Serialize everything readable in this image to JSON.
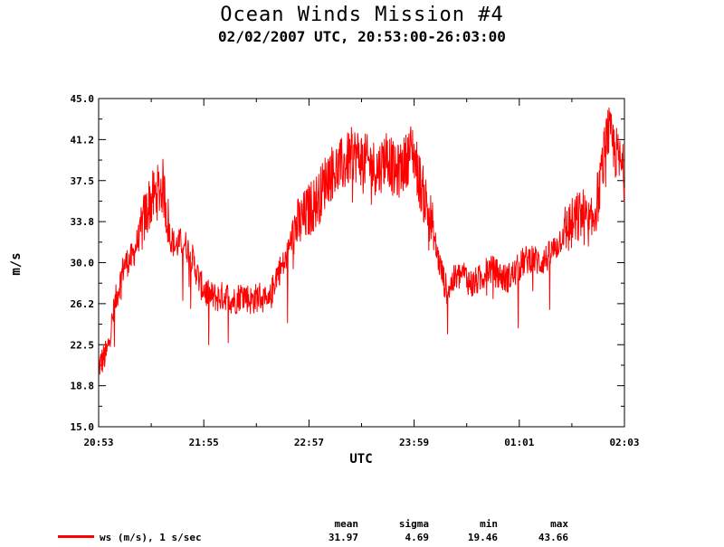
{
  "chart_data": {
    "type": "line",
    "title": "Ocean Winds Mission #4",
    "subtitle": "02/02/2007  UTC, 20:53:00-26:03:00",
    "xlabel": "UTC",
    "ylabel": "m/s",
    "ylim": [
      15.0,
      45.0
    ],
    "y_ticks": [
      "15.0",
      "18.8",
      "22.5",
      "26.2",
      "30.0",
      "33.8",
      "37.5",
      "41.2",
      "45.0"
    ],
    "x_ticks": [
      "20:53",
      "21:55",
      "22:57",
      "23:59",
      "01:01",
      "02:03"
    ],
    "grid": false,
    "series": [
      {
        "name": "ws (m/s), 1 s/sec",
        "color": "#ff0000",
        "x_minutes_after_2053": [
          0,
          5,
          10,
          15,
          20,
          25,
          30,
          35,
          38,
          42,
          45,
          50,
          55,
          60,
          65,
          70,
          75,
          80,
          85,
          90,
          95,
          100,
          105,
          110,
          115,
          120,
          125,
          130,
          135,
          140,
          145,
          150,
          155,
          160,
          165,
          170,
          175,
          180,
          185,
          190,
          195,
          200,
          205,
          210,
          215,
          220,
          225,
          230,
          235,
          240,
          245,
          250,
          255,
          260,
          265,
          270,
          275,
          280,
          285,
          290,
          295,
          300,
          305,
          310
        ],
        "values": [
          20.5,
          21.8,
          26.5,
          29.8,
          30.5,
          33.0,
          35.5,
          36.5,
          37.0,
          32.5,
          31.5,
          32.0,
          30.5,
          28.0,
          27.0,
          26.8,
          27.0,
          26.5,
          27.2,
          26.5,
          27.0,
          26.0,
          29.0,
          30.0,
          33.0,
          33.8,
          35.0,
          36.0,
          38.0,
          38.5,
          39.0,
          40.0,
          39.5,
          39.0,
          38.5,
          40.0,
          38.0,
          39.0,
          40.5,
          37.0,
          34.5,
          30.5,
          27.5,
          28.5,
          29.0,
          28.0,
          28.5,
          29.5,
          29.0,
          28.5,
          29.0,
          30.0,
          30.5,
          30.0,
          30.5,
          31.5,
          33.0,
          33.5,
          34.5,
          33.0,
          36.5,
          42.0,
          40.0,
          38.0
        ],
        "x_range_minutes": [
          0,
          310
        ]
      }
    ]
  },
  "stats": {
    "headers": [
      "mean",
      "sigma",
      "min",
      "max"
    ],
    "values": [
      "31.97",
      "4.69",
      "19.46",
      "43.66"
    ]
  }
}
